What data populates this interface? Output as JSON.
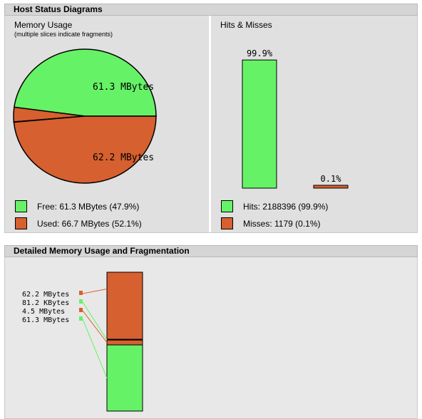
{
  "host_status": {
    "title": "Host Status Diagrams",
    "memory": {
      "title": "Memory Usage",
      "subtitle": "(multiple slices indicate fragments)",
      "slice_labels": [
        "61.3 MBytes",
        "62.2 MBytes"
      ],
      "legend": [
        {
          "label": "Free: 61.3 MBytes (47.9%)",
          "color": "#66f266"
        },
        {
          "label": "Used: 66.7 MBytes (52.1%)",
          "color": "#d6602f"
        }
      ]
    },
    "hits": {
      "title": "Hits & Misses",
      "bar_labels": [
        "99.9%",
        "0.1%"
      ],
      "legend": [
        {
          "label": "Hits: 2188396 (99.9%)",
          "color": "#66f266"
        },
        {
          "label": "Misses: 1179 (0.1%)",
          "color": "#d6602f"
        }
      ]
    }
  },
  "fragmentation": {
    "title": "Detailed Memory Usage and Fragmentation",
    "labels": [
      "62.2 MBytes",
      "81.2 KBytes",
      "4.5 MBytes",
      "61.3 MBytes"
    ]
  },
  "chart_data": [
    {
      "type": "pie",
      "title": "Memory Usage",
      "slices": [
        {
          "label": "61.3 MBytes",
          "value": 61.3,
          "state": "free"
        },
        {
          "label": "",
          "value": 4.5,
          "state": "used"
        },
        {
          "label": "",
          "value": 0.08,
          "state": "free"
        },
        {
          "label": "62.2 MBytes",
          "value": 62.2,
          "state": "used"
        }
      ]
    },
    {
      "type": "bar",
      "title": "Hits & Misses",
      "categories": [
        "Hits",
        "Misses"
      ],
      "values": [
        99.9,
        0.1
      ],
      "unit": "%"
    },
    {
      "type": "bar",
      "title": "Detailed Memory Usage and Fragmentation",
      "stacked": true,
      "segments": [
        {
          "label": "62.2 MBytes",
          "value": 62.2,
          "state": "used"
        },
        {
          "label": "81.2 KBytes",
          "value": 0.08,
          "state": "free"
        },
        {
          "label": "4.5 MBytes",
          "value": 4.5,
          "state": "used"
        },
        {
          "label": "61.3 MBytes",
          "value": 61.3,
          "state": "free"
        }
      ]
    }
  ],
  "colors": {
    "free": "#66f266",
    "used": "#d6602f",
    "panel_bg": "#e0e0e0"
  }
}
